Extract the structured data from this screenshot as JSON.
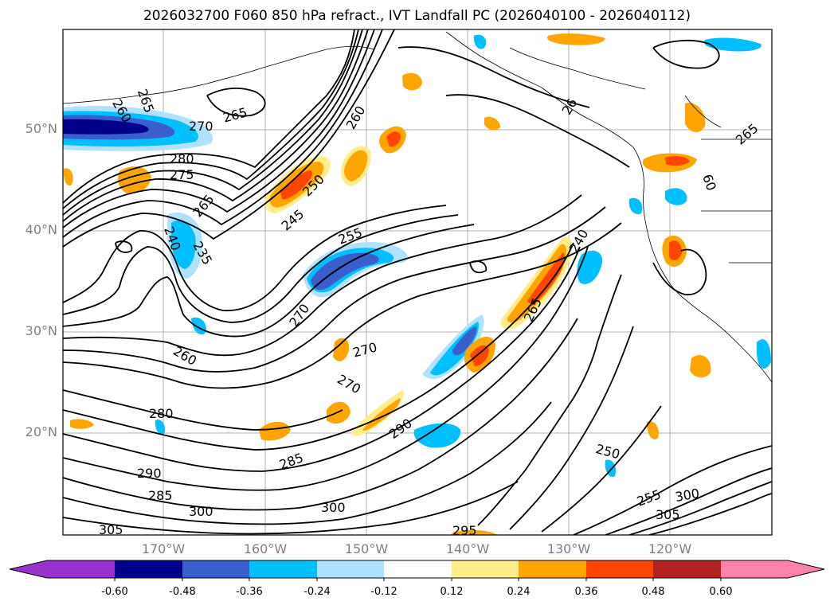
{
  "title": "2026032700 F060 850 hPa refract., IVT Landfall PC (2026040100 - 2026040112)",
  "map": {
    "region": "North-East Pacific, North America west coast",
    "lat_labels": [
      "50°N",
      "40°N",
      "30°N",
      "20°N"
    ],
    "lon_labels": [
      "170°W",
      "160°W",
      "150°W",
      "140°W",
      "130°W",
      "120°W"
    ],
    "contour_variable_labels": [
      "265",
      "260",
      "270",
      "265",
      "260",
      "280",
      "275",
      "250",
      "265",
      "245",
      "240",
      "255",
      "235",
      "270",
      "260",
      "270",
      "270",
      "280",
      "290",
      "285",
      "290",
      "285",
      "300",
      "300",
      "305",
      "295",
      "250",
      "255",
      "300",
      "305",
      "265",
      "240",
      "26",
      "265",
      "60"
    ]
  },
  "colorbar": {
    "tick_labels": [
      "-0.60",
      "-0.48",
      "-0.36",
      "-0.24",
      "-0.12",
      "0.12",
      "0.24",
      "0.36",
      "0.48",
      "0.60"
    ],
    "colors": [
      "#9932cc",
      "#00008b",
      "#3a5fcd",
      "#00bfff",
      "#b0e2ff",
      "#ffffff",
      "#ffec8b",
      "#ffa500",
      "#ff4500",
      "#b22222",
      "#ff82ab"
    ]
  }
}
